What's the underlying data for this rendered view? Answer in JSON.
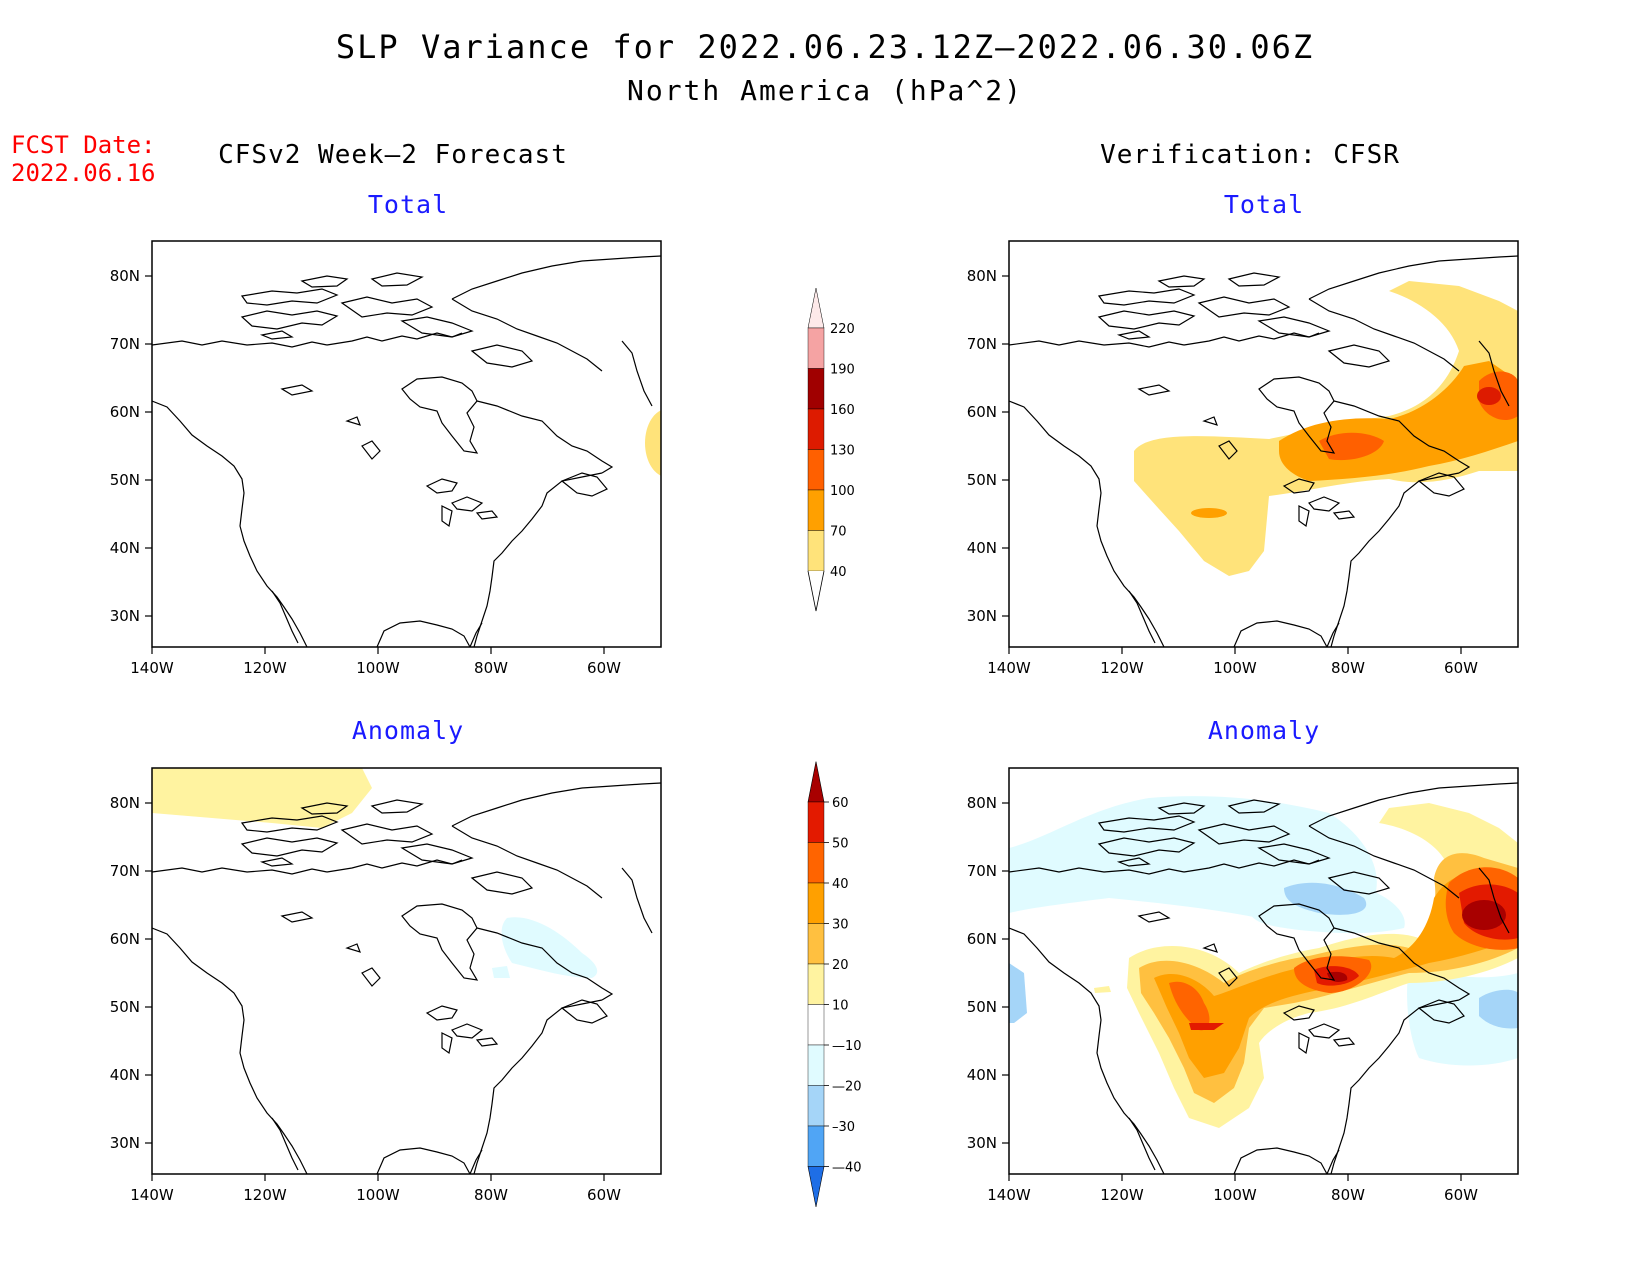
{
  "title": "SLP Variance for 2022.06.23.12Z—2022.06.30.06Z",
  "subtitle": "North America (hPa^2)",
  "fcst": {
    "label": "FCST Date:",
    "date": "2022.06.16"
  },
  "columns": {
    "left": "CFSv2 Week—2 Forecast",
    "right": "Verification: CFSR"
  },
  "panel_titles": {
    "total": "Total",
    "anomaly": "Anomaly"
  },
  "axes": {
    "lon_ticks": [
      "140W",
      "120W",
      "100W",
      "80W",
      "60W"
    ],
    "lat_ticks": [
      "80N",
      "70N",
      "60N",
      "50N",
      "40N",
      "30N"
    ]
  },
  "colorbars": {
    "total": {
      "levels": [
        "220",
        "190",
        "160",
        "130",
        "100",
        "70",
        "40"
      ],
      "colors": [
        "#f5a3a3",
        "#a00000",
        "#dd1b00",
        "#ff6000",
        "#ffa000",
        "#ffe37a"
      ]
    },
    "anomaly": {
      "levels": [
        "60",
        "50",
        "40",
        "30",
        "20",
        "10",
        "—10",
        "—20",
        "–30",
        "—40"
      ],
      "colors": [
        "#a80000",
        "#e31a00",
        "#ff6400",
        "#ffa000",
        "#ffc040",
        "#fff3a0",
        "#ffffff",
        "#e0fbff",
        "#a5d5f8",
        "#50a5f5",
        "#1e6ee6"
      ]
    }
  },
  "chart_data": {
    "type": "heatmap",
    "title": "SLP Variance for 2022.06.23.12Z—2022.06.30.06Z",
    "units": "hPa^2",
    "x_range": [
      -140,
      -50
    ],
    "y_range": [
      25,
      85
    ],
    "panels": [
      "CFSv2 Week-2 Forecast Total",
      "CFSv2 Week-2 Forecast Anomaly",
      "Verification CFSR Total",
      "Verification CFSR Anomaly"
    ]
  }
}
